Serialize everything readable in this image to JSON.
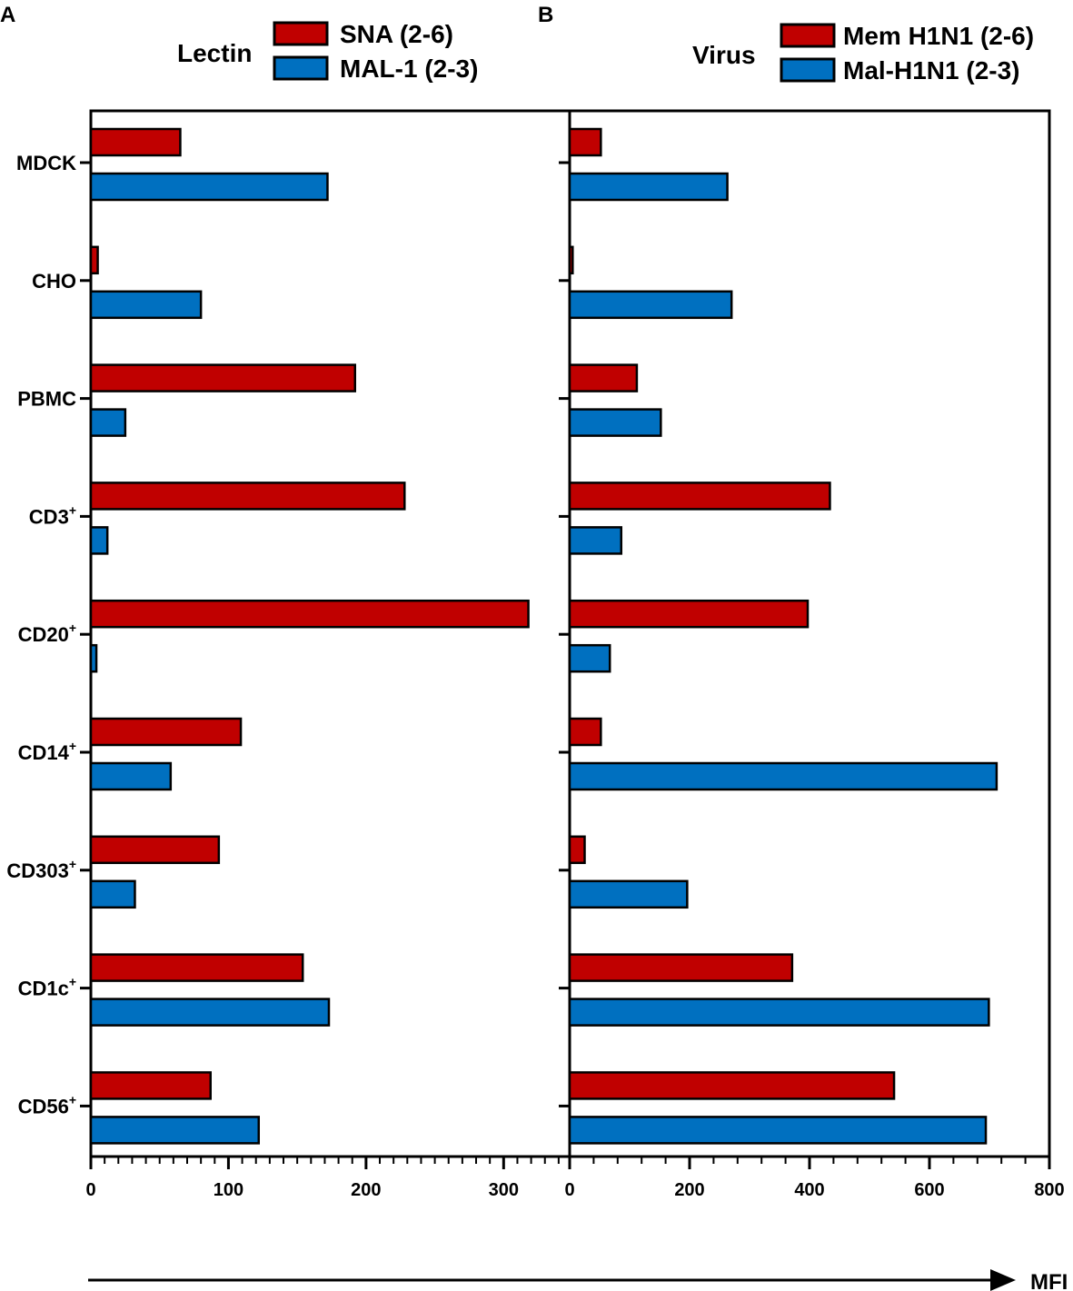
{
  "figure": {
    "categories": [
      "MDCK",
      "CHO",
      "PBMC",
      "CD3",
      "CD20",
      "CD14",
      "CD303",
      "CD1c",
      "CD56"
    ],
    "category_superscripts": [
      "",
      "",
      "",
      "+",
      "+",
      "+",
      "+",
      "+",
      "+"
    ],
    "axis_arrow_label": "MFI"
  },
  "chart_data": [
    {
      "type": "bar",
      "orientation": "horizontal",
      "panel": "A",
      "legend_title": "Lectin",
      "categories": [
        "MDCK",
        "CHO",
        "PBMC",
        "CD3+",
        "CD20+",
        "CD14+",
        "CD303+",
        "CD1c+",
        "CD56+"
      ],
      "series": [
        {
          "name": "SNA (2-6)",
          "color": "#c00000",
          "values": [
            65,
            5,
            192,
            228,
            318,
            109,
            93,
            154,
            87
          ]
        },
        {
          "name": "MAL-1 (2-3)",
          "color": "#0070c0",
          "values": [
            172,
            80,
            25,
            12,
            4,
            58,
            32,
            173,
            122
          ]
        }
      ],
      "xlim": [
        0,
        348
      ],
      "xticks": [
        0,
        100,
        200,
        300
      ],
      "minor_ticks_per_major": 10,
      "grid": false,
      "legend_position": "top"
    },
    {
      "type": "bar",
      "orientation": "horizontal",
      "panel": "B",
      "legend_title": "Virus",
      "categories": [
        "MDCK",
        "CHO",
        "PBMC",
        "CD3+",
        "CD20+",
        "CD14+",
        "CD303+",
        "CD1c+",
        "CD56+"
      ],
      "series": [
        {
          "name": "Mem H1N1 (2-6)",
          "color": "#c00000",
          "values": [
            52,
            5,
            112,
            434,
            397,
            52,
            25,
            371,
            541
          ]
        },
        {
          "name": "Mal-H1N1 (2-3)",
          "color": "#0070c0",
          "values": [
            263,
            270,
            152,
            86,
            67,
            712,
            196,
            699,
            694
          ]
        }
      ],
      "xlim": [
        0,
        800
      ],
      "xticks": [
        0,
        200,
        400,
        600,
        800
      ],
      "minor_ticks_per_major": 5,
      "grid": false,
      "legend_position": "top"
    }
  ]
}
